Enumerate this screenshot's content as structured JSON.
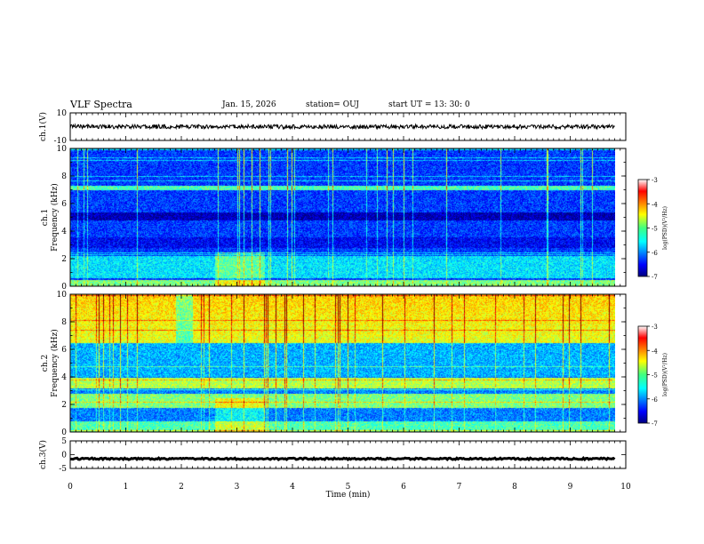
{
  "header": {
    "title": "VLF Spectra",
    "date": "Jan. 15, 2026",
    "station": "station= OUJ",
    "start_ut": "start  UT  =   13: 30: 0"
  },
  "chart_data": [
    {
      "type": "line",
      "name": "ch1-waveform",
      "title": "",
      "ylabel": "ch.1(V)",
      "ylim": [
        -10,
        10
      ],
      "yticks": [
        "10",
        "-10"
      ],
      "xlim": [
        0,
        10
      ],
      "data_extent_min": 9.8,
      "description_values": {
        "baseline": 0,
        "amplitude": 1.5
      }
    },
    {
      "type": "heatmap",
      "name": "ch1-spectrogram",
      "ylabel": "ch.1\nFrequency (kHz)",
      "ylabel_lines": [
        "ch.1",
        "Frequency (kHz)"
      ],
      "ylim": [
        0,
        10
      ],
      "yticks": [
        "0",
        "2",
        "4",
        "6",
        "8",
        "10"
      ],
      "xlim": [
        0,
        10
      ],
      "data_extent_min": 9.8,
      "colorbar": {
        "label": "log(PSD)(V²/Hz)",
        "range": [
          -7,
          -3
        ],
        "ticks": [
          "-3",
          "-4",
          "-5",
          "-6",
          "-7"
        ]
      }
    },
    {
      "type": "heatmap",
      "name": "ch2-spectrogram",
      "ylabel": "ch.2\nFrequency (kHz)",
      "ylabel_lines": [
        "ch.2",
        "Frequency (kHz)"
      ],
      "ylim": [
        0,
        10
      ],
      "yticks": [
        "0",
        "2",
        "4",
        "6",
        "8",
        "10"
      ],
      "xlim": [
        0,
        10
      ],
      "data_extent_min": 9.8,
      "colorbar": {
        "label": "log(PSD)(V²/Hz)",
        "range": [
          -7,
          -3
        ],
        "ticks": [
          "-3",
          "-4",
          "-5",
          "-6",
          "-7"
        ]
      }
    },
    {
      "type": "line",
      "name": "ch3-waveform",
      "ylabel": "ch.3(V)",
      "ylim": [
        -5,
        5
      ],
      "yticks": [
        "5",
        "0",
        "-5"
      ],
      "xlim": [
        0,
        10
      ],
      "data_extent_min": 9.8,
      "description_values": {
        "baseline": -1.5,
        "amplitude": 0.3
      }
    }
  ],
  "xaxis": {
    "label": "Time  (min)",
    "ticks": [
      "0",
      "1",
      "2",
      "3",
      "4",
      "5",
      "6",
      "7",
      "8",
      "9",
      "10"
    ]
  }
}
